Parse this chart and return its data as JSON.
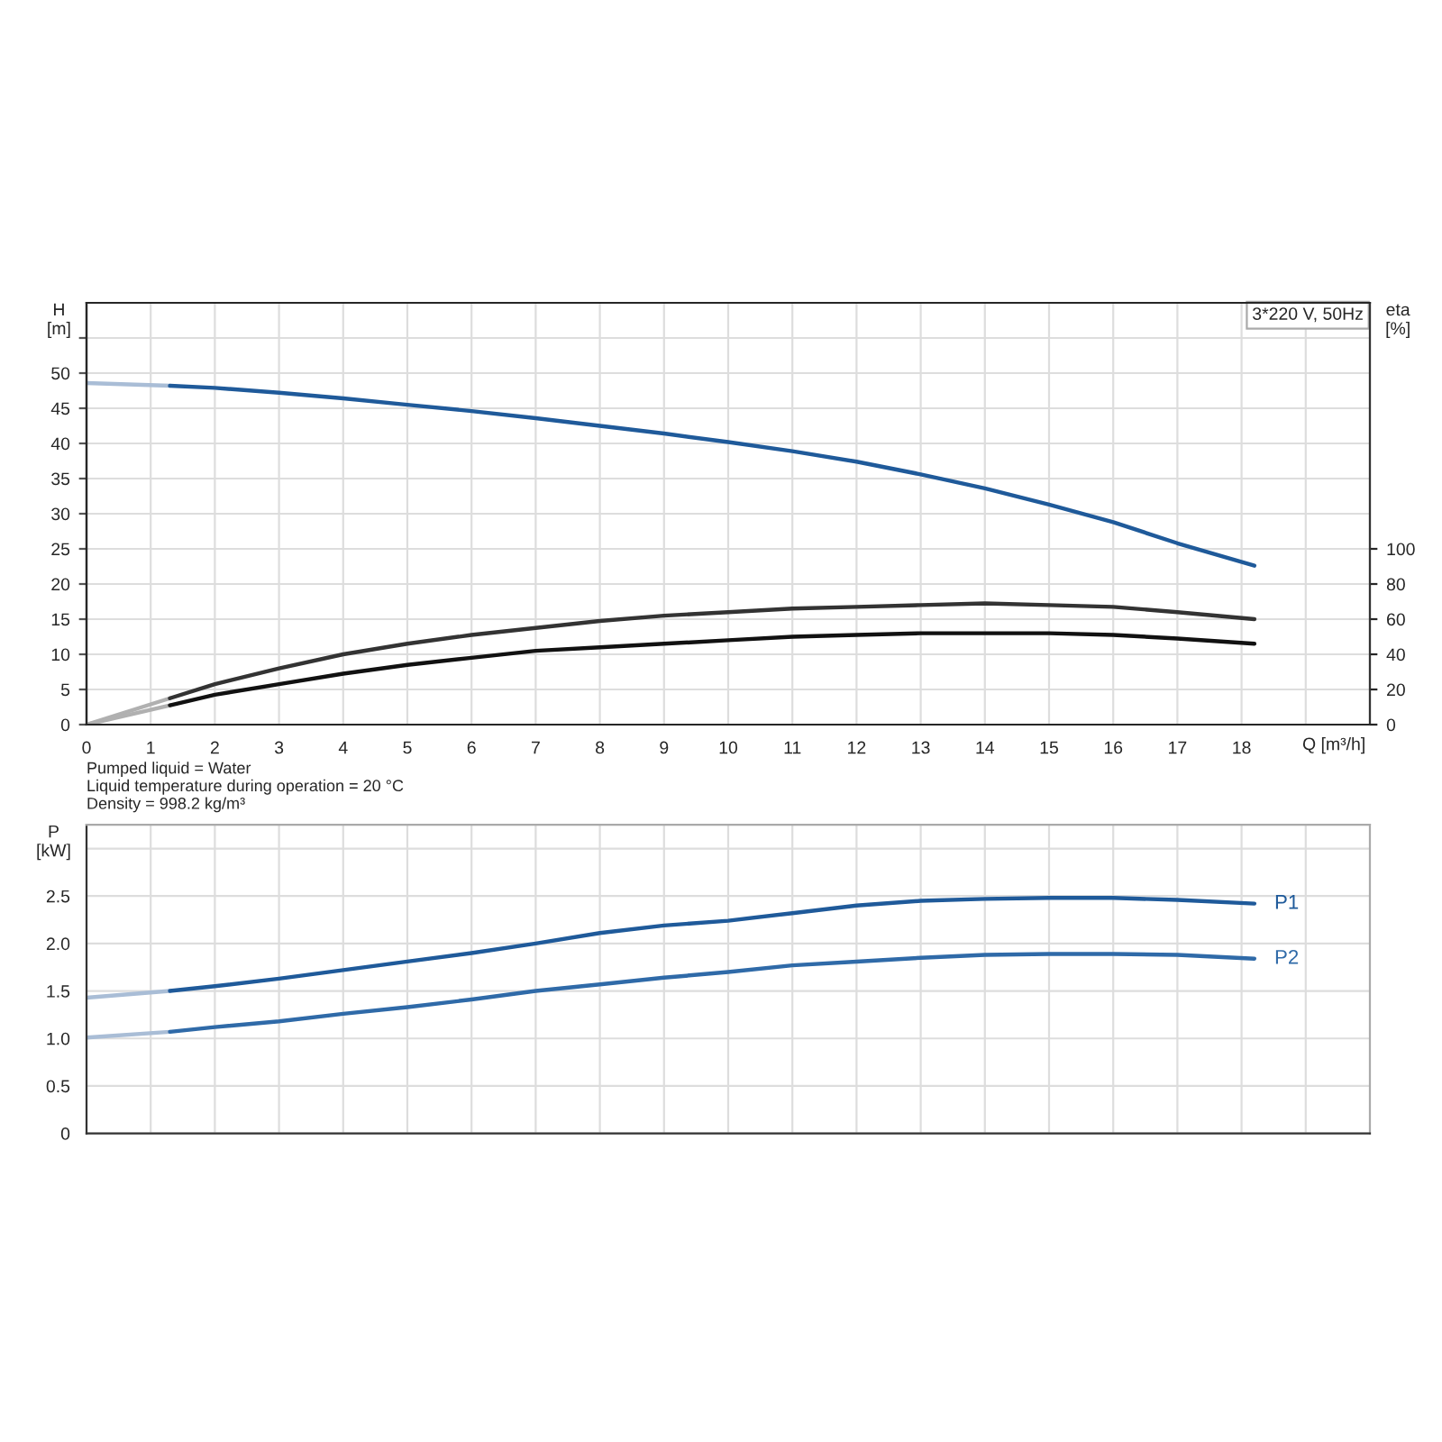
{
  "chart_data": [
    {
      "type": "line",
      "title": "3*220 V, 50Hz",
      "xlabel": "Q [m³/h]",
      "ylabel": "H\n[m]",
      "y2label": "eta\n[%]",
      "xlim": [
        0,
        20
      ],
      "xticks": [
        0,
        1,
        2,
        3,
        4,
        5,
        6,
        7,
        8,
        9,
        10,
        11,
        12,
        13,
        14,
        15,
        16,
        17,
        18,
        {
          "value": 19,
          "label": null
        }
      ],
      "ylim": [
        0,
        60
      ],
      "yticks": [
        0,
        5,
        10,
        15,
        20,
        25,
        30,
        35,
        40,
        45,
        50,
        {
          "value": 55,
          "label": null
        }
      ],
      "y2lim": [
        0,
        240
      ],
      "y2ticks": [
        0,
        20,
        40,
        60,
        80,
        100
      ],
      "grid": true,
      "legend": false,
      "marker": "none",
      "line_style": "solid",
      "annotations": [
        "Pumped liquid = Water",
        "Liquid temperature during operation = 20 °C",
        "Density = 998.2 kg/m³"
      ],
      "series": [
        {
          "color": "#a9bdd6",
          "x": [
            0,
            1.3
          ],
          "values": [
            48.6,
            48.2
          ]
        },
        {
          "color": "#1f5a9a",
          "x": [
            1.3,
            2,
            3,
            4,
            5,
            6,
            7,
            8,
            9,
            10,
            11,
            12,
            13,
            14,
            15,
            16,
            17,
            18.2
          ],
          "values": [
            48.2,
            47.9,
            47.2,
            46.4,
            45.5,
            44.6,
            43.6,
            42.5,
            41.4,
            40.2,
            38.9,
            37.4,
            35.6,
            33.6,
            31.3,
            28.8,
            25.8,
            22.6
          ]
        },
        {
          "color": "#b0b0b0",
          "axis": "y2",
          "x": [
            0,
            1.3
          ],
          "values": [
            0,
            15
          ]
        },
        {
          "color": "#333333",
          "axis": "y2",
          "x": [
            1.3,
            2,
            3,
            4,
            5,
            6,
            7,
            8,
            9,
            10,
            11,
            12,
            13,
            14,
            15,
            16,
            17,
            18.2
          ],
          "values": [
            15,
            23,
            32,
            40,
            46,
            51,
            55,
            59,
            62,
            64,
            66,
            67,
            68,
            69,
            68,
            67,
            64,
            60
          ]
        },
        {
          "color": "#b0b0b0",
          "axis": "y2",
          "x": [
            0,
            1.3
          ],
          "values": [
            0,
            11
          ]
        },
        {
          "color": "#111111",
          "axis": "y2",
          "x": [
            1.3,
            2,
            3,
            4,
            5,
            6,
            7,
            8,
            9,
            10,
            11,
            12,
            13,
            14,
            15,
            16,
            17,
            18.2
          ],
          "values": [
            11,
            17,
            23,
            29,
            34,
            38,
            42,
            44,
            46,
            48,
            50,
            51,
            52,
            52,
            52,
            51,
            49,
            46
          ]
        }
      ]
    },
    {
      "type": "line",
      "ylabel": "P\n[kW]",
      "tick_labels": "y",
      "xlim": [
        0,
        20
      ],
      "xticks": [
        0,
        1,
        2,
        3,
        4,
        5,
        6,
        7,
        8,
        9,
        10,
        11,
        12,
        13,
        14,
        15,
        16,
        17,
        18,
        19
      ],
      "ylim": [
        0,
        3.25
      ],
      "yticks": [
        0,
        0.5,
        {
          "value": 1,
          "label": "1.0"
        },
        1.5,
        {
          "value": 2,
          "label": "2.0"
        },
        2.5,
        {
          "value": 3,
          "label": null
        }
      ],
      "grid": true,
      "legend": false,
      "marker": "none",
      "line_style": "solid",
      "series": [
        {
          "color": "#a9bdd6",
          "x": [
            0,
            1.3
          ],
          "values": [
            1.43,
            1.5
          ]
        },
        {
          "name": "P1",
          "color": "#1f5a9a",
          "x": [
            1.3,
            2,
            3,
            4,
            5,
            6,
            7,
            8,
            9,
            10,
            11,
            12,
            13,
            14,
            15,
            16,
            17,
            18.2
          ],
          "values": [
            1.5,
            1.55,
            1.63,
            1.72,
            1.81,
            1.9,
            2.0,
            2.11,
            2.19,
            2.24,
            2.32,
            2.4,
            2.45,
            2.47,
            2.48,
            2.48,
            2.46,
            2.42
          ]
        },
        {
          "color": "#a9bdd6",
          "x": [
            0,
            1.3
          ],
          "values": [
            1.01,
            1.07
          ]
        },
        {
          "name": "P2",
          "color": "#2f6aa8",
          "x": [
            1.3,
            2,
            3,
            4,
            5,
            6,
            7,
            8,
            9,
            10,
            11,
            12,
            13,
            14,
            15,
            16,
            17,
            18.2
          ],
          "values": [
            1.07,
            1.12,
            1.18,
            1.26,
            1.33,
            1.41,
            1.5,
            1.57,
            1.64,
            1.7,
            1.77,
            1.81,
            1.85,
            1.88,
            1.89,
            1.89,
            1.88,
            1.84
          ]
        }
      ]
    }
  ]
}
